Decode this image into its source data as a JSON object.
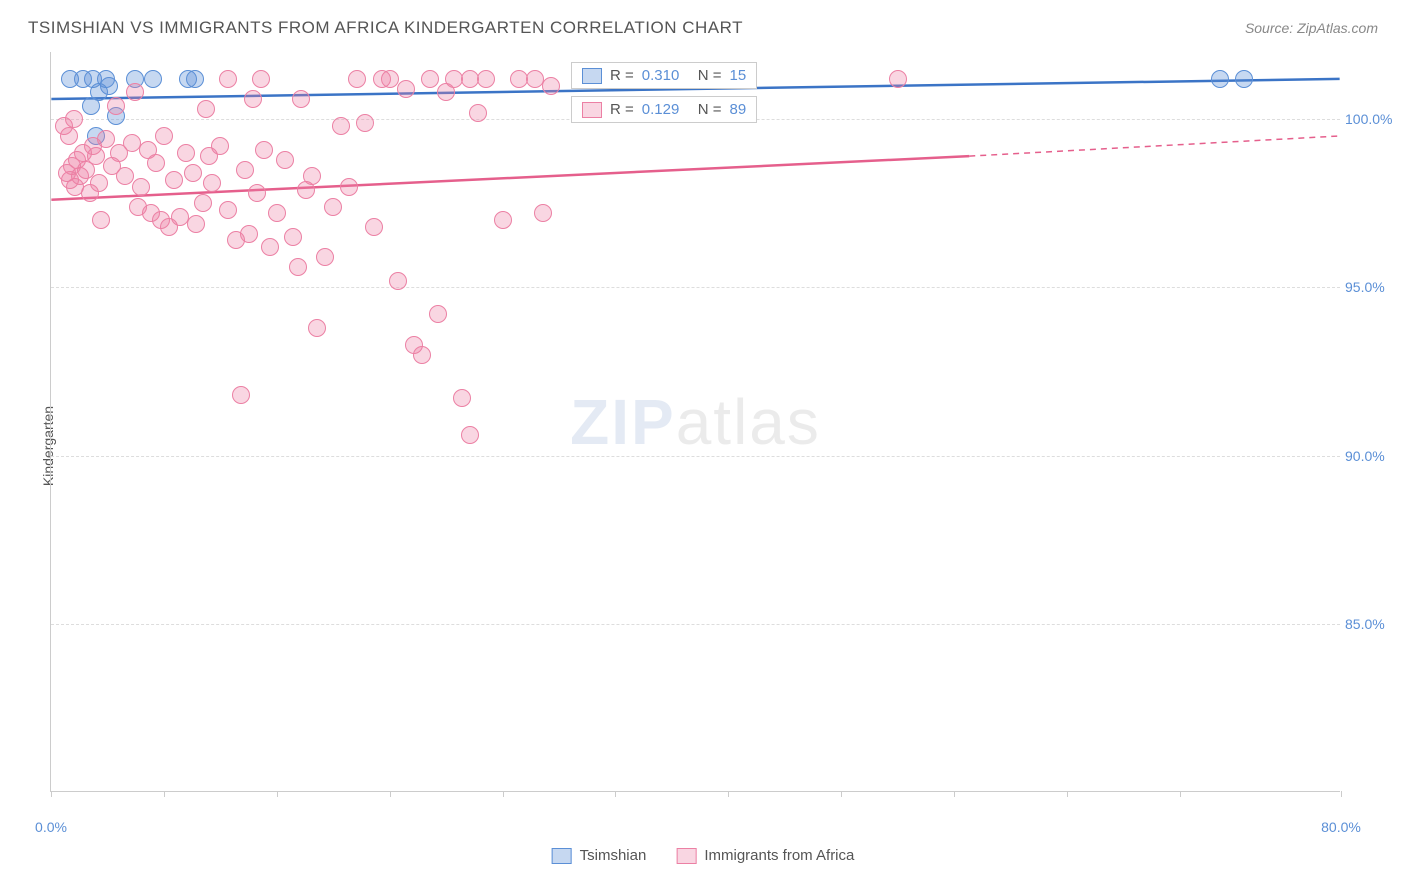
{
  "title": "TSIMSHIAN VS IMMIGRANTS FROM AFRICA KINDERGARTEN CORRELATION CHART",
  "source": "Source: ZipAtlas.com",
  "y_axis_title": "Kindergarten",
  "watermark": {
    "zip": "ZIP",
    "atlas": "atlas"
  },
  "chart": {
    "type": "scatter",
    "background_color": "#ffffff",
    "grid_color": "#dddddd",
    "axis_color": "#cccccc",
    "xlim": [
      0,
      80
    ],
    "ylim": [
      80,
      102
    ],
    "x_ticks": [
      0,
      7,
      14,
      21,
      28,
      35,
      42,
      49,
      56,
      63,
      70,
      80
    ],
    "x_tick_labels": {
      "0": "0.0%",
      "80": "80.0%"
    },
    "y_gridlines": [
      85,
      90,
      95,
      100
    ],
    "y_tick_labels": {
      "85": "85.0%",
      "90": "90.0%",
      "95": "95.0%",
      "100": "100.0%"
    },
    "series": [
      {
        "name": "Tsimshian",
        "fill_color": "rgba(91,143,214,0.35)",
        "stroke_color": "#5b8fd6",
        "trend_color": "#3b74c6",
        "trend_width": 2.5,
        "r_value": "0.310",
        "n_value": "15",
        "trend": {
          "x1": 0,
          "y1": 100.6,
          "x2": 80,
          "y2": 101.2
        },
        "points": [
          [
            1.2,
            101.2
          ],
          [
            2.0,
            101.2
          ],
          [
            2.6,
            101.2
          ],
          [
            3.4,
            101.2
          ],
          [
            5.2,
            101.2
          ],
          [
            6.3,
            101.2
          ],
          [
            8.5,
            101.2
          ],
          [
            8.9,
            101.2
          ],
          [
            2.5,
            100.4
          ],
          [
            2.8,
            99.5
          ],
          [
            72.5,
            101.2
          ],
          [
            74.0,
            101.2
          ],
          [
            4.0,
            100.1
          ],
          [
            3.0,
            100.8
          ],
          [
            3.6,
            101.0
          ]
        ]
      },
      {
        "name": "Immigrants from Africa",
        "fill_color": "rgba(236,128,164,0.32)",
        "stroke_color": "#ec80a4",
        "trend_color": "#e55f8c",
        "trend_width": 2.5,
        "r_value": "0.129",
        "n_value": "89",
        "trend": {
          "x1": 0,
          "y1": 97.6,
          "x2": 57,
          "y2": 98.9
        },
        "trend_extend": {
          "x1": 57,
          "x2": 80,
          "y2": 99.5
        },
        "points": [
          [
            11.0,
            101.2
          ],
          [
            13.0,
            101.2
          ],
          [
            15.5,
            100.6
          ],
          [
            19.0,
            101.2
          ],
          [
            20.5,
            101.2
          ],
          [
            21.0,
            101.2
          ],
          [
            22.0,
            100.9
          ],
          [
            23.5,
            101.2
          ],
          [
            24.5,
            100.8
          ],
          [
            25.0,
            101.2
          ],
          [
            26.0,
            101.2
          ],
          [
            26.5,
            100.2
          ],
          [
            27.0,
            101.2
          ],
          [
            29.0,
            101.2
          ],
          [
            30.0,
            101.2
          ],
          [
            31.0,
            101.0
          ],
          [
            33.0,
            101.2
          ],
          [
            52.5,
            101.2
          ],
          [
            1.0,
            98.4
          ],
          [
            1.2,
            98.2
          ],
          [
            1.3,
            98.6
          ],
          [
            1.5,
            98.0
          ],
          [
            1.6,
            98.8
          ],
          [
            1.8,
            98.3
          ],
          [
            2.0,
            99.0
          ],
          [
            2.2,
            98.5
          ],
          [
            2.4,
            97.8
          ],
          [
            2.6,
            99.2
          ],
          [
            2.8,
            98.9
          ],
          [
            3.0,
            98.1
          ],
          [
            3.4,
            99.4
          ],
          [
            3.8,
            98.6
          ],
          [
            4.2,
            99.0
          ],
          [
            4.6,
            98.3
          ],
          [
            5.0,
            99.3
          ],
          [
            5.4,
            97.4
          ],
          [
            5.6,
            98.0
          ],
          [
            6.0,
            99.1
          ],
          [
            6.2,
            97.2
          ],
          [
            6.5,
            98.7
          ],
          [
            6.8,
            97.0
          ],
          [
            7.0,
            99.5
          ],
          [
            7.3,
            96.8
          ],
          [
            7.6,
            98.2
          ],
          [
            8.0,
            97.1
          ],
          [
            8.4,
            99.0
          ],
          [
            8.8,
            98.4
          ],
          [
            9.0,
            96.9
          ],
          [
            9.4,
            97.5
          ],
          [
            9.8,
            98.9
          ],
          [
            10.0,
            98.1
          ],
          [
            10.5,
            99.2
          ],
          [
            11.0,
            97.3
          ],
          [
            11.5,
            96.4
          ],
          [
            12.0,
            98.5
          ],
          [
            12.3,
            96.6
          ],
          [
            12.8,
            97.8
          ],
          [
            13.2,
            99.1
          ],
          [
            13.6,
            96.2
          ],
          [
            14.0,
            97.2
          ],
          [
            14.5,
            98.8
          ],
          [
            15.0,
            96.5
          ],
          [
            15.3,
            95.6
          ],
          [
            15.8,
            97.9
          ],
          [
            16.2,
            98.3
          ],
          [
            16.5,
            93.8
          ],
          [
            17.0,
            95.9
          ],
          [
            17.5,
            97.4
          ],
          [
            18.0,
            99.8
          ],
          [
            18.5,
            98.0
          ],
          [
            19.5,
            99.9
          ],
          [
            20.0,
            96.8
          ],
          [
            21.5,
            95.2
          ],
          [
            22.5,
            93.3
          ],
          [
            23.0,
            93.0
          ],
          [
            24.0,
            94.2
          ],
          [
            25.5,
            91.7
          ],
          [
            26.0,
            90.6
          ],
          [
            28.0,
            97.0
          ],
          [
            11.8,
            91.8
          ],
          [
            3.1,
            97.0
          ],
          [
            0.8,
            99.8
          ],
          [
            1.1,
            99.5
          ],
          [
            30.5,
            97.2
          ],
          [
            4.0,
            100.4
          ],
          [
            5.2,
            100.8
          ],
          [
            9.6,
            100.3
          ],
          [
            12.5,
            100.6
          ],
          [
            1.4,
            100.0
          ]
        ]
      }
    ],
    "legend_stats": [
      {
        "series_idx": 0,
        "r_label": "R =",
        "n_label": "N ="
      },
      {
        "series_idx": 1,
        "r_label": "R =",
        "n_label": "N ="
      }
    ],
    "bottom_legend": [
      {
        "series_idx": 0
      },
      {
        "series_idx": 1
      }
    ]
  }
}
